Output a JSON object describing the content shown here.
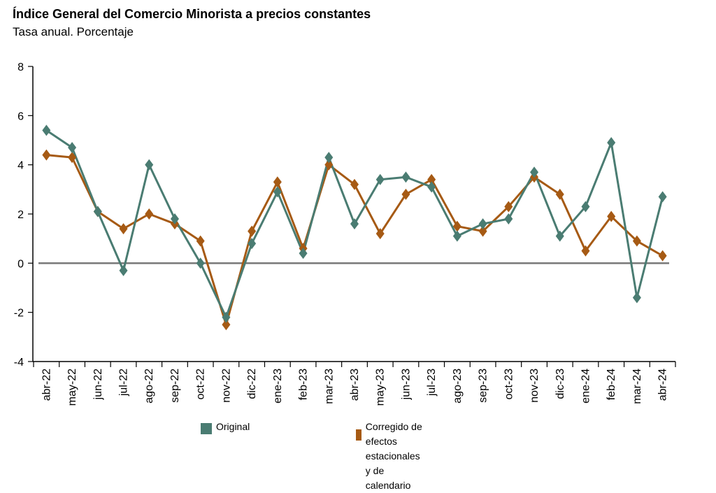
{
  "title": "Índice General del Comercio Minorista a precios constantes",
  "subtitle": "Tasa anual. Porcentaje",
  "legend": {
    "original": "Original",
    "corrected_line1": "Corregido de efectos",
    "corrected_line2": "estacionales y de calendario"
  },
  "chart_data": {
    "type": "line",
    "categories": [
      "abr-22",
      "may-22",
      "jun-22",
      "jul-22",
      "ago-22",
      "sep-22",
      "oct-22",
      "nov-22",
      "dic-22",
      "ene-23",
      "feb-23",
      "mar-23",
      "abr-23",
      "may-23",
      "jun-23",
      "jul-23",
      "ago-23",
      "sep-23",
      "oct-23",
      "nov-23",
      "dic-23",
      "ene-24",
      "feb-24",
      "mar-24",
      "abr-24"
    ],
    "series": [
      {
        "name": "Original",
        "color": "#4a7c72",
        "marker": "diamond",
        "values": [
          5.4,
          4.7,
          2.1,
          -0.3,
          4.0,
          1.8,
          0.0,
          -2.2,
          0.8,
          2.9,
          0.4,
          4.3,
          1.6,
          3.4,
          3.5,
          3.1,
          1.1,
          1.6,
          1.8,
          3.7,
          1.1,
          2.3,
          4.9,
          -1.4,
          2.7
        ]
      },
      {
        "name": "Corregido de efectos estacionales y de calendario",
        "color": "#a65a14",
        "marker": "diamond",
        "values": [
          4.4,
          4.3,
          2.1,
          1.4,
          2.0,
          1.6,
          0.9,
          -2.5,
          1.3,
          3.3,
          0.6,
          4.0,
          3.2,
          1.2,
          2.8,
          3.4,
          1.5,
          1.3,
          2.3,
          3.5,
          2.8,
          0.5,
          1.9,
          0.9,
          0.3
        ]
      }
    ],
    "ylim": [
      -4,
      8
    ],
    "yticks": [
      -4,
      -2,
      0,
      2,
      4,
      6,
      8
    ],
    "ytick_labels": [
      "-4",
      "-2",
      "0",
      "2",
      "4",
      "6",
      "8"
    ],
    "zero_line": true,
    "grid": false,
    "legend_position": "bottom"
  }
}
